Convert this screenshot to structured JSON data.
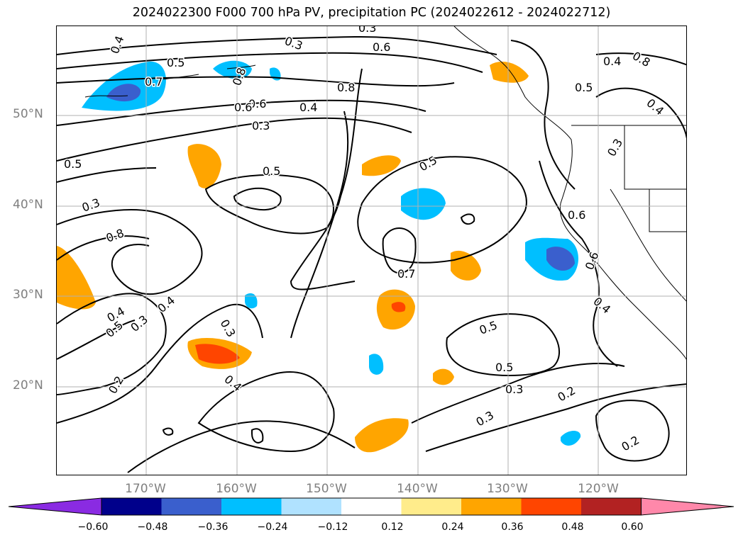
{
  "title": "2024022300 F000 700 hPa PV, precipitation PC (2024022612 - 2024022712)",
  "map": {
    "lat_labels": [
      "50°N",
      "40°N",
      "30°N",
      "20°N"
    ],
    "lon_labels": [
      "170°W",
      "160°W",
      "150°W",
      "140°W",
      "130°W",
      "120°W"
    ],
    "contour_labels": [
      "0.4",
      "0.3",
      "0.3",
      "0.6",
      "0.5",
      "0.7",
      "0.8",
      "0.6",
      "0.8",
      "0.4",
      "0.6",
      "0.5",
      "0.8",
      "0.4",
      "0.3",
      "0.5",
      "0.4",
      "0.5",
      "0.5",
      "0.3",
      "0.3",
      "0.6",
      "0.8",
      "0.7",
      "0.4",
      "0.5",
      "0.3",
      "0.4",
      "0.6",
      "0.5",
      "0.4",
      "0.5",
      "0.3",
      "0.2",
      "0.4",
      "0.3",
      "0.2",
      "0.2",
      "0.3"
    ]
  },
  "colorbar": {
    "ticks": [
      "−0.60",
      "−0.48",
      "−0.36",
      "−0.24",
      "−0.12",
      "0.12",
      "0.24",
      "0.36",
      "0.48",
      "0.60"
    ],
    "colors": [
      "#8a2be2",
      "#00008b",
      "#3a5fcd",
      "#00bfff",
      "#b0e2ff",
      "#ffffff",
      "#ffec8b",
      "#ffa500",
      "#ff4500",
      "#b22222",
      "#ff88aa"
    ]
  }
}
